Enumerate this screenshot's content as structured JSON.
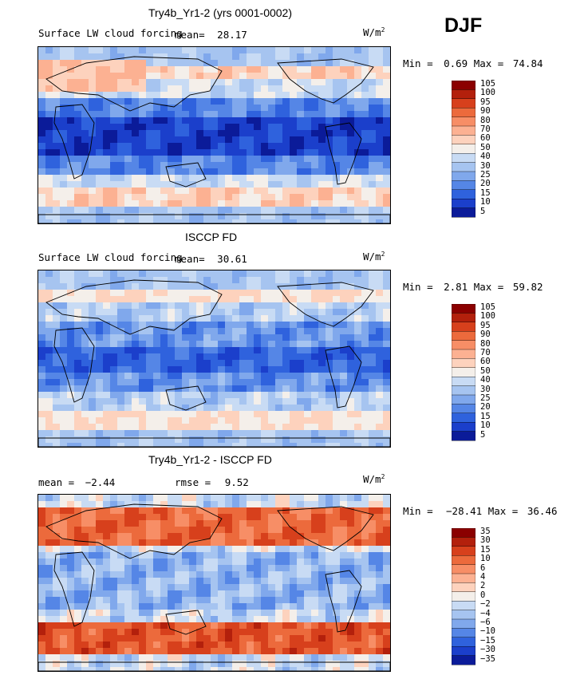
{
  "season": "DJF",
  "unit_base": "W/m",
  "unit_exp": "2",
  "panels": [
    {
      "title": "Try4b_Yr1-2 (yrs 0001-0002)",
      "subtitle": "Surface LW cloud forcing",
      "mean_label": "mean=",
      "mean_value": "28.17",
      "min_label": "Min =",
      "min_value": "0.69",
      "max_label": "Max =",
      "max_value": "74.84",
      "colorbar": [
        "105",
        "100",
        "95",
        "90",
        "80",
        "70",
        "60",
        "50",
        "40",
        "30",
        "25",
        "20",
        "15",
        "10",
        "5"
      ]
    },
    {
      "title": "ISCCP FD",
      "subtitle": "Surface LW cloud forcing",
      "mean_label": "mean=",
      "mean_value": "30.61",
      "min_label": "Min =",
      "min_value": "2.81",
      "max_label": "Max =",
      "max_value": "59.82",
      "colorbar": [
        "105",
        "100",
        "95",
        "90",
        "80",
        "70",
        "60",
        "50",
        "40",
        "30",
        "25",
        "20",
        "15",
        "10",
        "5"
      ]
    },
    {
      "title": "Try4b_Yr1-2 - ISCCP FD",
      "mean_label": "mean =",
      "mean_value": "−2.44",
      "rmse_label": "rmse =",
      "rmse_value": "9.52",
      "min_label": "Min =",
      "min_value": "−28.41",
      "max_label": "Max =",
      "max_value": "36.46",
      "colorbar": [
        "35",
        "30",
        "15",
        "10",
        "6",
        "4",
        "2",
        "0",
        "−2",
        "−4",
        "−6",
        "−10",
        "−15",
        "−30",
        "−35"
      ]
    }
  ],
  "palette": [
    "#8b0000",
    "#b3200c",
    "#d7401c",
    "#ec6a3c",
    "#f78e66",
    "#fcb192",
    "#fdd2bd",
    "#f4efea",
    "#c8dbf4",
    "#a6c4f0",
    "#80a8ec",
    "#5586e6",
    "#2f62dd",
    "#1b3fcb",
    "#0b1b99"
  ],
  "chart_data": [
    {
      "type": "heatmap",
      "title": "Try4b_Yr1-2 (yrs 0001-0002)",
      "variable": "Surface LW cloud forcing",
      "units": "W/m2",
      "season": "DJF",
      "mean": 28.17,
      "min": 0.69,
      "max": 74.84,
      "levels": [
        5,
        10,
        15,
        20,
        25,
        30,
        40,
        50,
        60,
        70,
        80,
        90,
        95,
        100,
        105
      ]
    },
    {
      "type": "heatmap",
      "title": "ISCCP FD",
      "variable": "Surface LW cloud forcing",
      "units": "W/m2",
      "season": "DJF",
      "mean": 30.61,
      "min": 2.81,
      "max": 59.82,
      "levels": [
        5,
        10,
        15,
        20,
        25,
        30,
        40,
        50,
        60,
        70,
        80,
        90,
        95,
        100,
        105
      ]
    },
    {
      "type": "heatmap",
      "title": "Try4b_Yr1-2 - ISCCP FD",
      "units": "W/m2",
      "season": "DJF",
      "mean": -2.44,
      "rmse": 9.52,
      "min": -28.41,
      "max": 36.46,
      "levels": [
        -35,
        -30,
        -15,
        -10,
        -6,
        -4,
        -2,
        0,
        2,
        4,
        6,
        10,
        15,
        30,
        35
      ]
    }
  ]
}
